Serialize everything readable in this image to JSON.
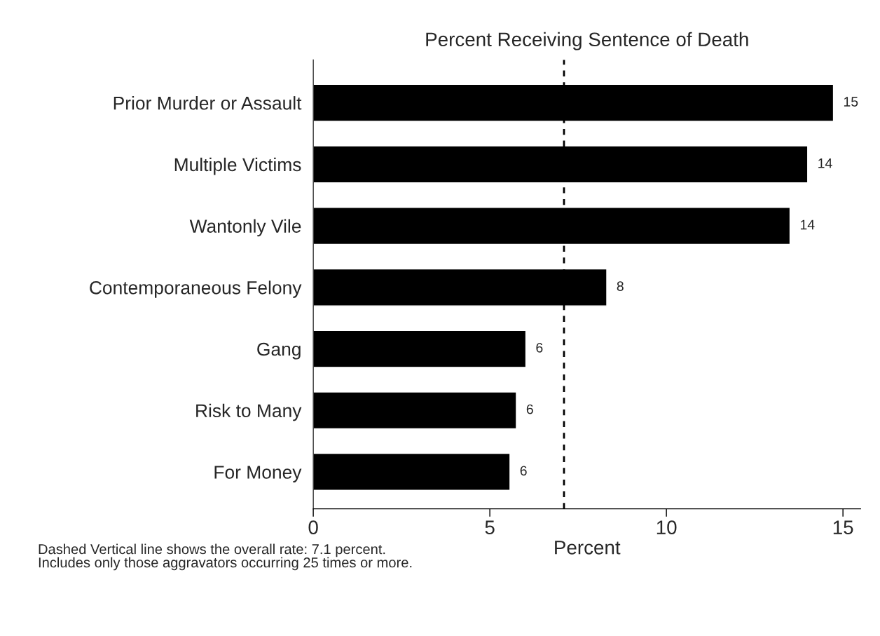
{
  "chart_data": {
    "type": "bar",
    "orientation": "horizontal",
    "title": "Percent Receiving Sentence of Death",
    "xlabel": "Percent",
    "categories": [
      "Prior Murder or Assault",
      "Multiple Victims",
      "Wantonly Vile",
      "Contemporaneous Felony",
      "Gang",
      "Risk to Many",
      "For Money"
    ],
    "values": [
      14.73,
      14.0,
      13.5,
      8.31,
      6.02,
      5.75,
      5.57
    ],
    "value_labels": [
      "15",
      "14",
      "14",
      "8",
      "6",
      "6",
      "6"
    ],
    "color": "#000000",
    "xlim": [
      0,
      15.5
    ],
    "xticks": [
      0,
      5,
      10,
      15
    ],
    "grid": false,
    "legend": false,
    "ref_lines": [
      {
        "axis": "x",
        "value": 7.1,
        "color": "#000000",
        "line_style": "dashed"
      }
    ],
    "annotations": [
      "Dashed Vertical line shows the overall rate: 7.1 percent.",
      "Includes only those aggravators occurring 25 times or more."
    ]
  }
}
